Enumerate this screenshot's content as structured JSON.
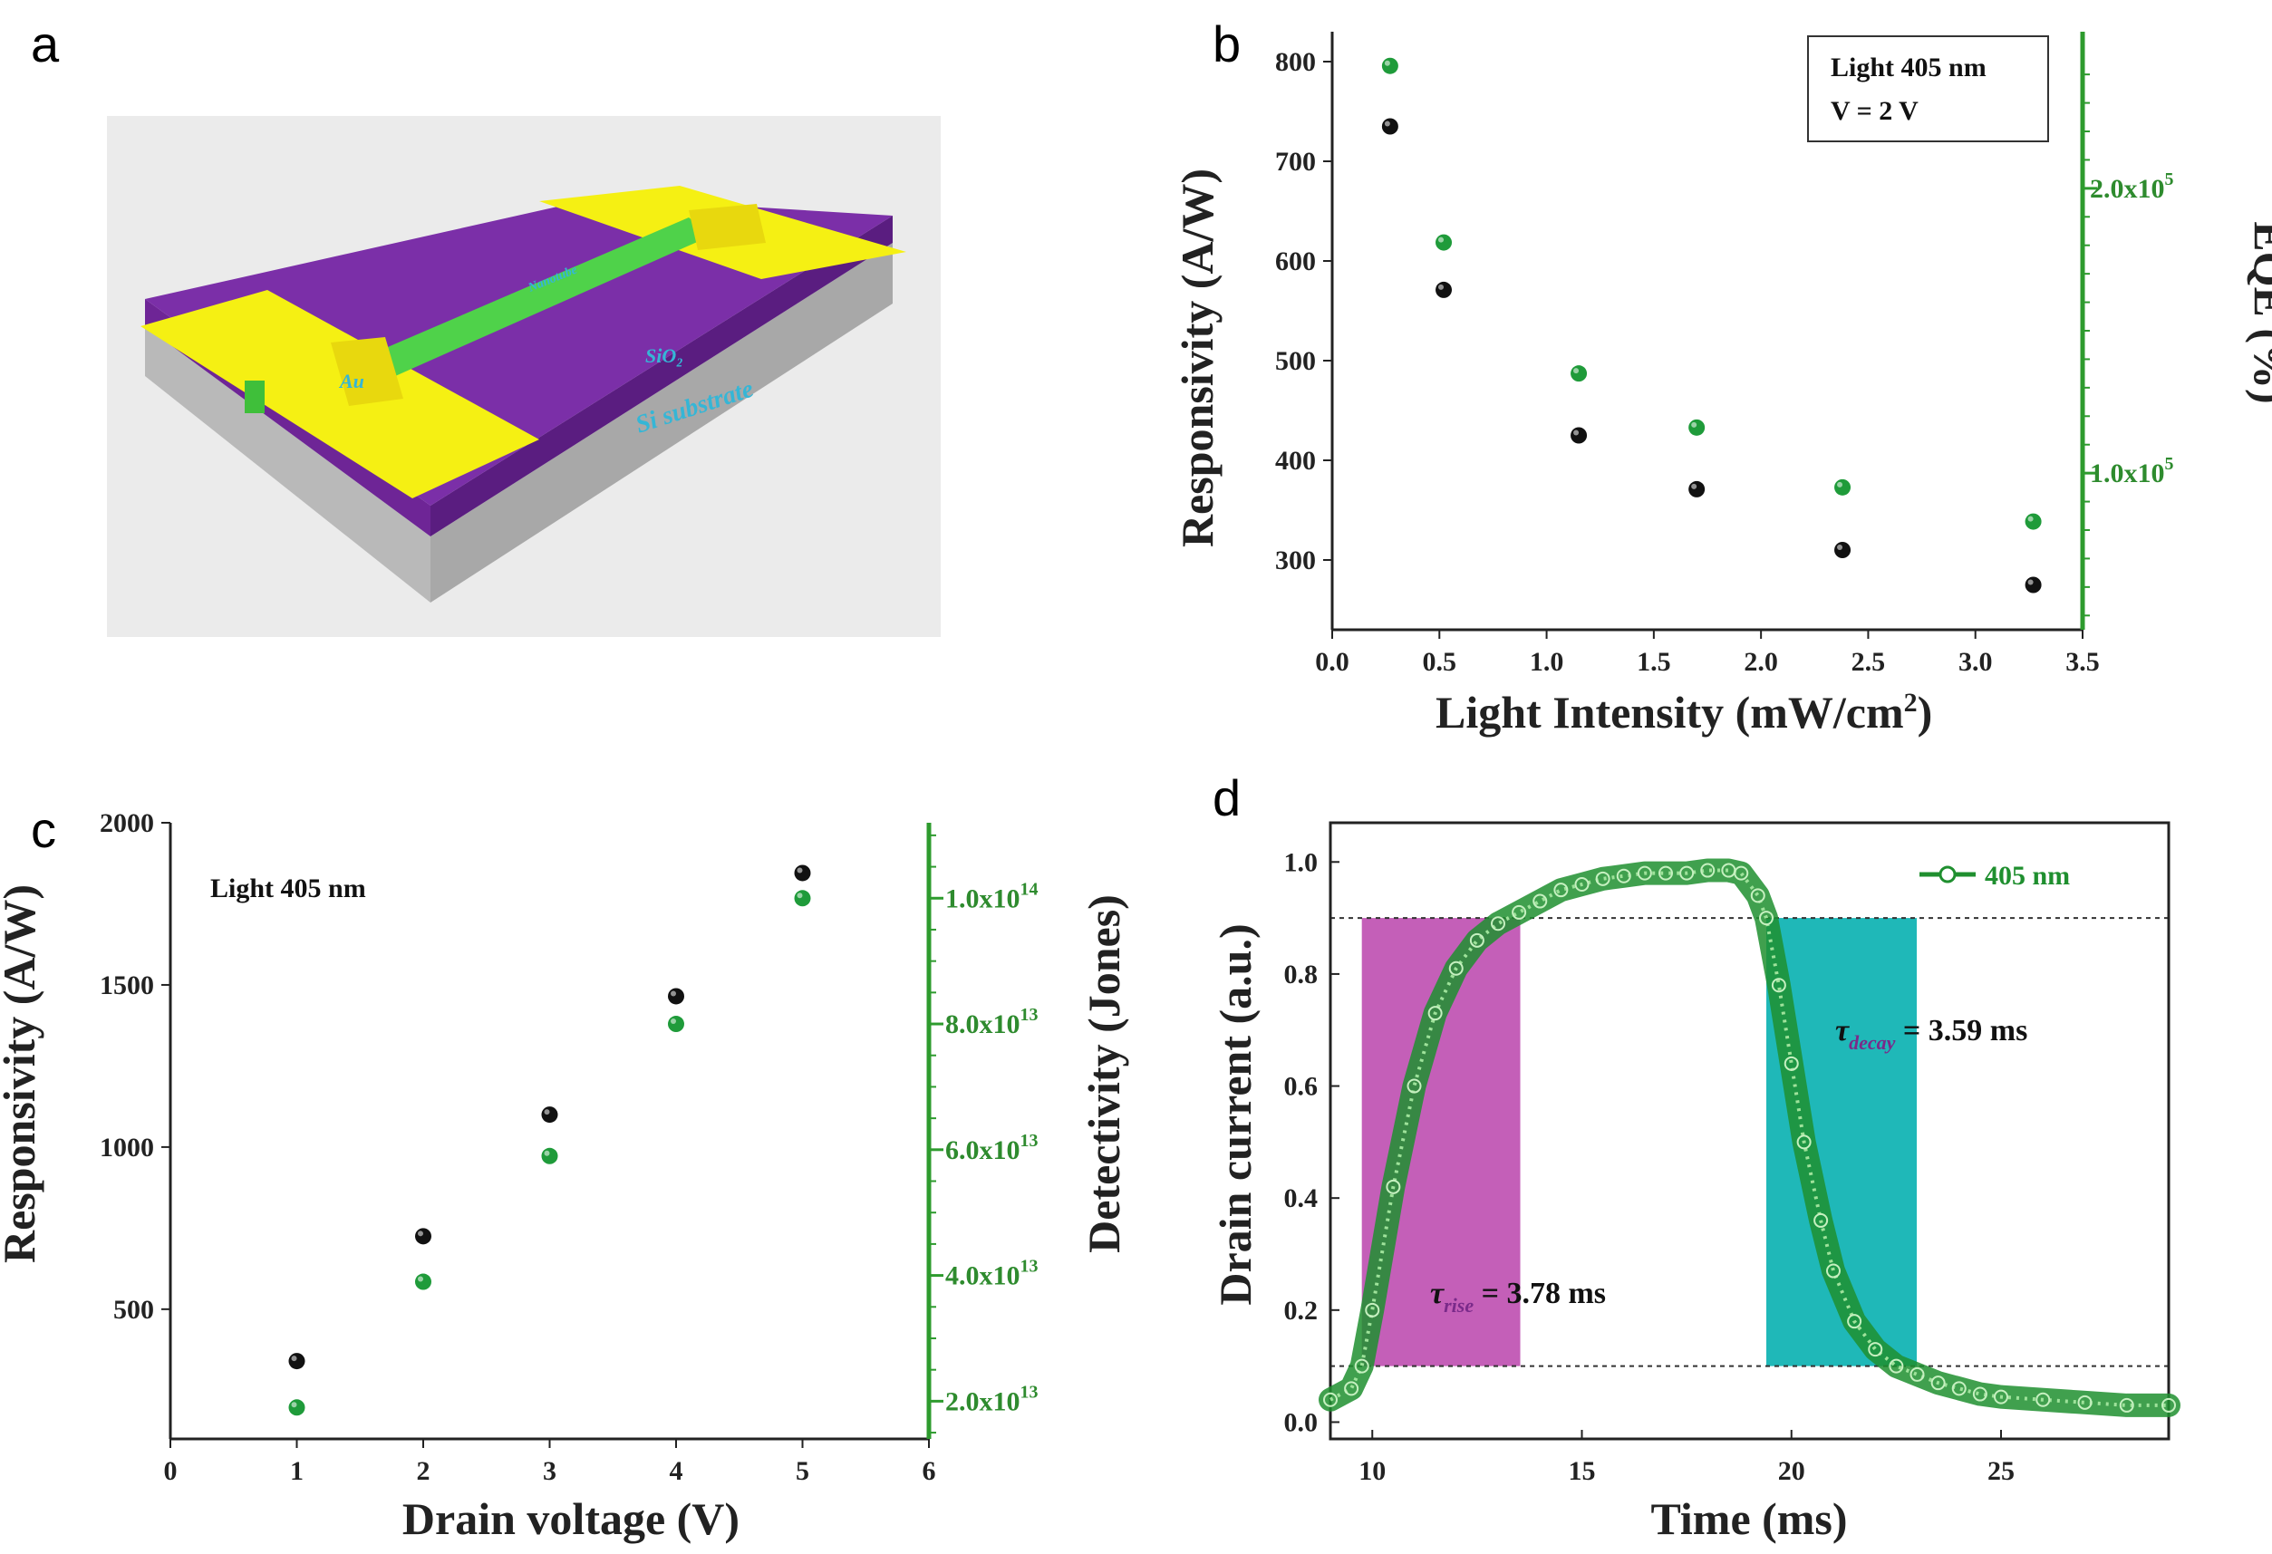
{
  "panel_labels": {
    "a": "a",
    "b": "b",
    "c": "c",
    "d": "d"
  },
  "device": {
    "labels": {
      "au": "Au",
      "sio2": "SiO₂",
      "substrate": "Si substrate",
      "nanotube": "Nanotube"
    },
    "colors": {
      "gold": "#f5f013",
      "oxide": "#7b2fa8",
      "substrate": "#c8c8c8",
      "wire": "#4fd24a"
    }
  },
  "chart_data": [
    {
      "panel": "b",
      "type": "scatter",
      "xlabel": "Light Intensity (mW/cm",
      "xlabel_sup": "2",
      "xlabel_end": ")",
      "ylabel": "Responsivity (A/W)",
      "y2label": "EQE (%)",
      "xlim": [
        0.0,
        3.5
      ],
      "ylim": [
        230,
        830
      ],
      "y2lim": [
        0.45,
        2.55
      ],
      "xticks": [
        "0.0",
        "0.5",
        "1.0",
        "1.5",
        "2.0",
        "2.5",
        "3.0",
        "3.5"
      ],
      "yticks": [
        "300",
        "400",
        "500",
        "600",
        "700",
        "800"
      ],
      "y2ticks": [
        {
          "mantissa": "1.0x10",
          "exp": "5",
          "value": 1.0
        },
        {
          "mantissa": "2.0x10",
          "exp": "5",
          "value": 2.0
        }
      ],
      "annotation": [
        "Light 405 nm",
        "V = 2 V"
      ],
      "series": [
        {
          "name": "Responsivity",
          "axis": "left",
          "color": "#111111",
          "x": [
            0.27,
            0.52,
            1.15,
            1.7,
            2.38,
            3.27
          ],
          "y": [
            735,
            571,
            425,
            371,
            310,
            275
          ]
        },
        {
          "name": "EQE",
          "axis": "right",
          "color": "#1f9b3a",
          "x": [
            0.27,
            0.52,
            1.15,
            1.7,
            2.38,
            3.27
          ],
          "y": [
            2.43,
            1.81,
            1.35,
            1.16,
            0.95,
            0.83
          ]
        }
      ]
    },
    {
      "panel": "c",
      "type": "scatter",
      "xlabel": "Drain voltage (V)",
      "ylabel": "Responsivity (A/W)",
      "y2label": "Detectivity (Jones)",
      "xlim": [
        0,
        6
      ],
      "ylim": [
        100,
        2000
      ],
      "y2lim": [
        1.4,
        11.2
      ],
      "xticks": [
        "0",
        "1",
        "2",
        "3",
        "4",
        "5",
        "6"
      ],
      "yticks": [
        "500",
        "1000",
        "1500",
        "2000"
      ],
      "y2ticks": [
        {
          "mantissa": "2.0x10",
          "exp": "13",
          "value": 2
        },
        {
          "mantissa": "4.0x10",
          "exp": "13",
          "value": 4
        },
        {
          "mantissa": "6.0x10",
          "exp": "13",
          "value": 6
        },
        {
          "mantissa": "8.0x10",
          "exp": "13",
          "value": 8
        },
        {
          "mantissa": "1.0x10",
          "exp": "14",
          "value": 10
        }
      ],
      "annotation": [
        "Light 405 nm"
      ],
      "series": [
        {
          "name": "Responsivity",
          "axis": "left",
          "color": "#111111",
          "x": [
            1,
            2,
            3,
            4,
            5
          ],
          "y": [
            340,
            725,
            1100,
            1465,
            1845
          ]
        },
        {
          "name": "Detectivity (x10^13 Jones)",
          "axis": "right",
          "color": "#1f9b3a",
          "x": [
            1,
            2,
            3,
            4,
            5
          ],
          "y": [
            1.9,
            3.9,
            5.9,
            8.0,
            10.0
          ]
        }
      ]
    },
    {
      "panel": "d",
      "type": "line",
      "xlabel": "Time (ms)",
      "ylabel": "Drain current (a.u.)",
      "xlim": [
        9,
        29
      ],
      "ylim": [
        -0.03,
        1.07
      ],
      "xticks": [
        "10",
        "15",
        "20",
        "25"
      ],
      "yticks": [
        "0.0",
        "0.2",
        "0.4",
        "0.6",
        "0.8",
        "1.0"
      ],
      "legend": "405 nm",
      "legend_position": "top-right",
      "reference_lines": [
        0.9,
        0.1
      ],
      "rise": {
        "label": "rise",
        "value_text": " = 3.78 ms",
        "x_start": 9.75,
        "x_end": 13.53,
        "color": "#c45fb8"
      },
      "decay": {
        "label": "decay",
        "value_text": " = 3.59 ms",
        "x_start": 19.4,
        "x_end": 22.99,
        "color": "#1fb8b8"
      },
      "series": [
        {
          "name": "405 nm",
          "color": "#1f8f2f",
          "x": [
            9.0,
            9.5,
            9.75,
            10.0,
            10.5,
            11.0,
            11.5,
            12.0,
            12.5,
            13.0,
            13.5,
            14.0,
            14.5,
            15.0,
            15.5,
            16.0,
            16.5,
            17.0,
            17.5,
            18.0,
            18.5,
            18.8,
            19.2,
            19.4,
            19.7,
            20.0,
            20.3,
            20.7,
            21.0,
            21.5,
            22.0,
            22.5,
            23.0,
            23.5,
            24.0,
            24.5,
            25.0,
            26.0,
            27.0,
            28.0,
            29.0
          ],
          "y": [
            0.04,
            0.06,
            0.1,
            0.2,
            0.42,
            0.6,
            0.73,
            0.81,
            0.86,
            0.89,
            0.91,
            0.93,
            0.95,
            0.96,
            0.97,
            0.975,
            0.98,
            0.98,
            0.98,
            0.985,
            0.985,
            0.98,
            0.94,
            0.9,
            0.78,
            0.64,
            0.5,
            0.36,
            0.27,
            0.18,
            0.13,
            0.1,
            0.085,
            0.07,
            0.06,
            0.05,
            0.045,
            0.04,
            0.035,
            0.03,
            0.03
          ]
        }
      ]
    }
  ]
}
